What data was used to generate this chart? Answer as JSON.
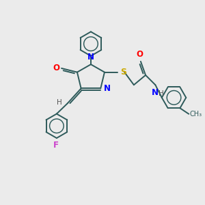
{
  "bg_color": "#ebebeb",
  "bond_color": "#2d5a5a",
  "atom_N_color": "#0000ff",
  "atom_O_color": "#ff0000",
  "atom_S_color": "#ccaa00",
  "atom_F_color": "#cc44cc",
  "atom_H_color": "#555555",
  "lw": 1.4,
  "ring_r": 0.62,
  "xlim": [
    0,
    10
  ],
  "ylim": [
    0,
    10
  ]
}
